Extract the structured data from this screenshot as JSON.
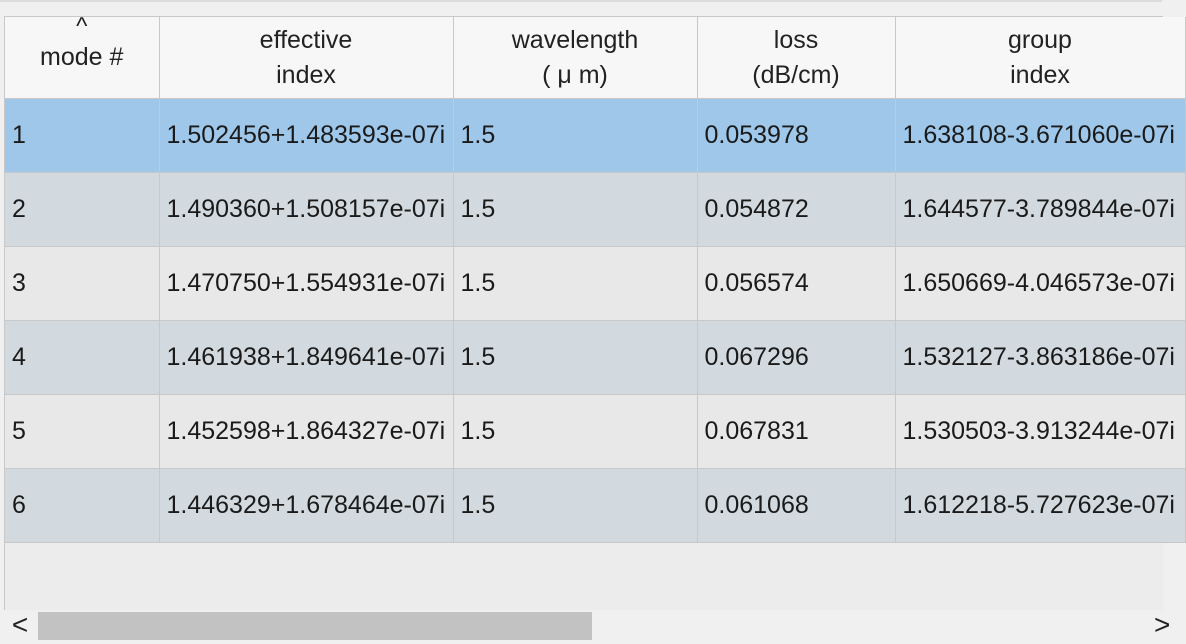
{
  "table": {
    "columns": [
      {
        "line1": "mode #",
        "line2": ""
      },
      {
        "line1": "effective",
        "line2": "index"
      },
      {
        "line1": "wavelength",
        "line2": "( μ m)"
      },
      {
        "line1": "loss",
        "line2": "(dB/cm)"
      },
      {
        "line1": "group",
        "line2": "index"
      }
    ],
    "sort_indicator": "^",
    "rows": [
      [
        "1",
        "1.502456+1.483593e-07i",
        "1.5",
        "0.053978",
        "1.638108-3.671060e-07i"
      ],
      [
        "2",
        "1.490360+1.508157e-07i",
        "1.5",
        "0.054872",
        "1.644577-3.789844e-07i"
      ],
      [
        "3",
        "1.470750+1.554931e-07i",
        "1.5",
        "0.056574",
        "1.650669-4.046573e-07i"
      ],
      [
        "4",
        "1.461938+1.849641e-07i",
        "1.5",
        "0.067296",
        "1.532127-3.863186e-07i"
      ],
      [
        "5",
        "1.452598+1.864327e-07i",
        "1.5",
        "0.067831",
        "1.530503-3.913244e-07i"
      ],
      [
        "6",
        "1.446329+1.678464e-07i",
        "1.5",
        "0.061068",
        "1.612218-5.727623e-07i"
      ]
    ],
    "selected_row": 0
  },
  "scrollbar": {
    "left_arrow": "<",
    "right_arrow": ">"
  }
}
